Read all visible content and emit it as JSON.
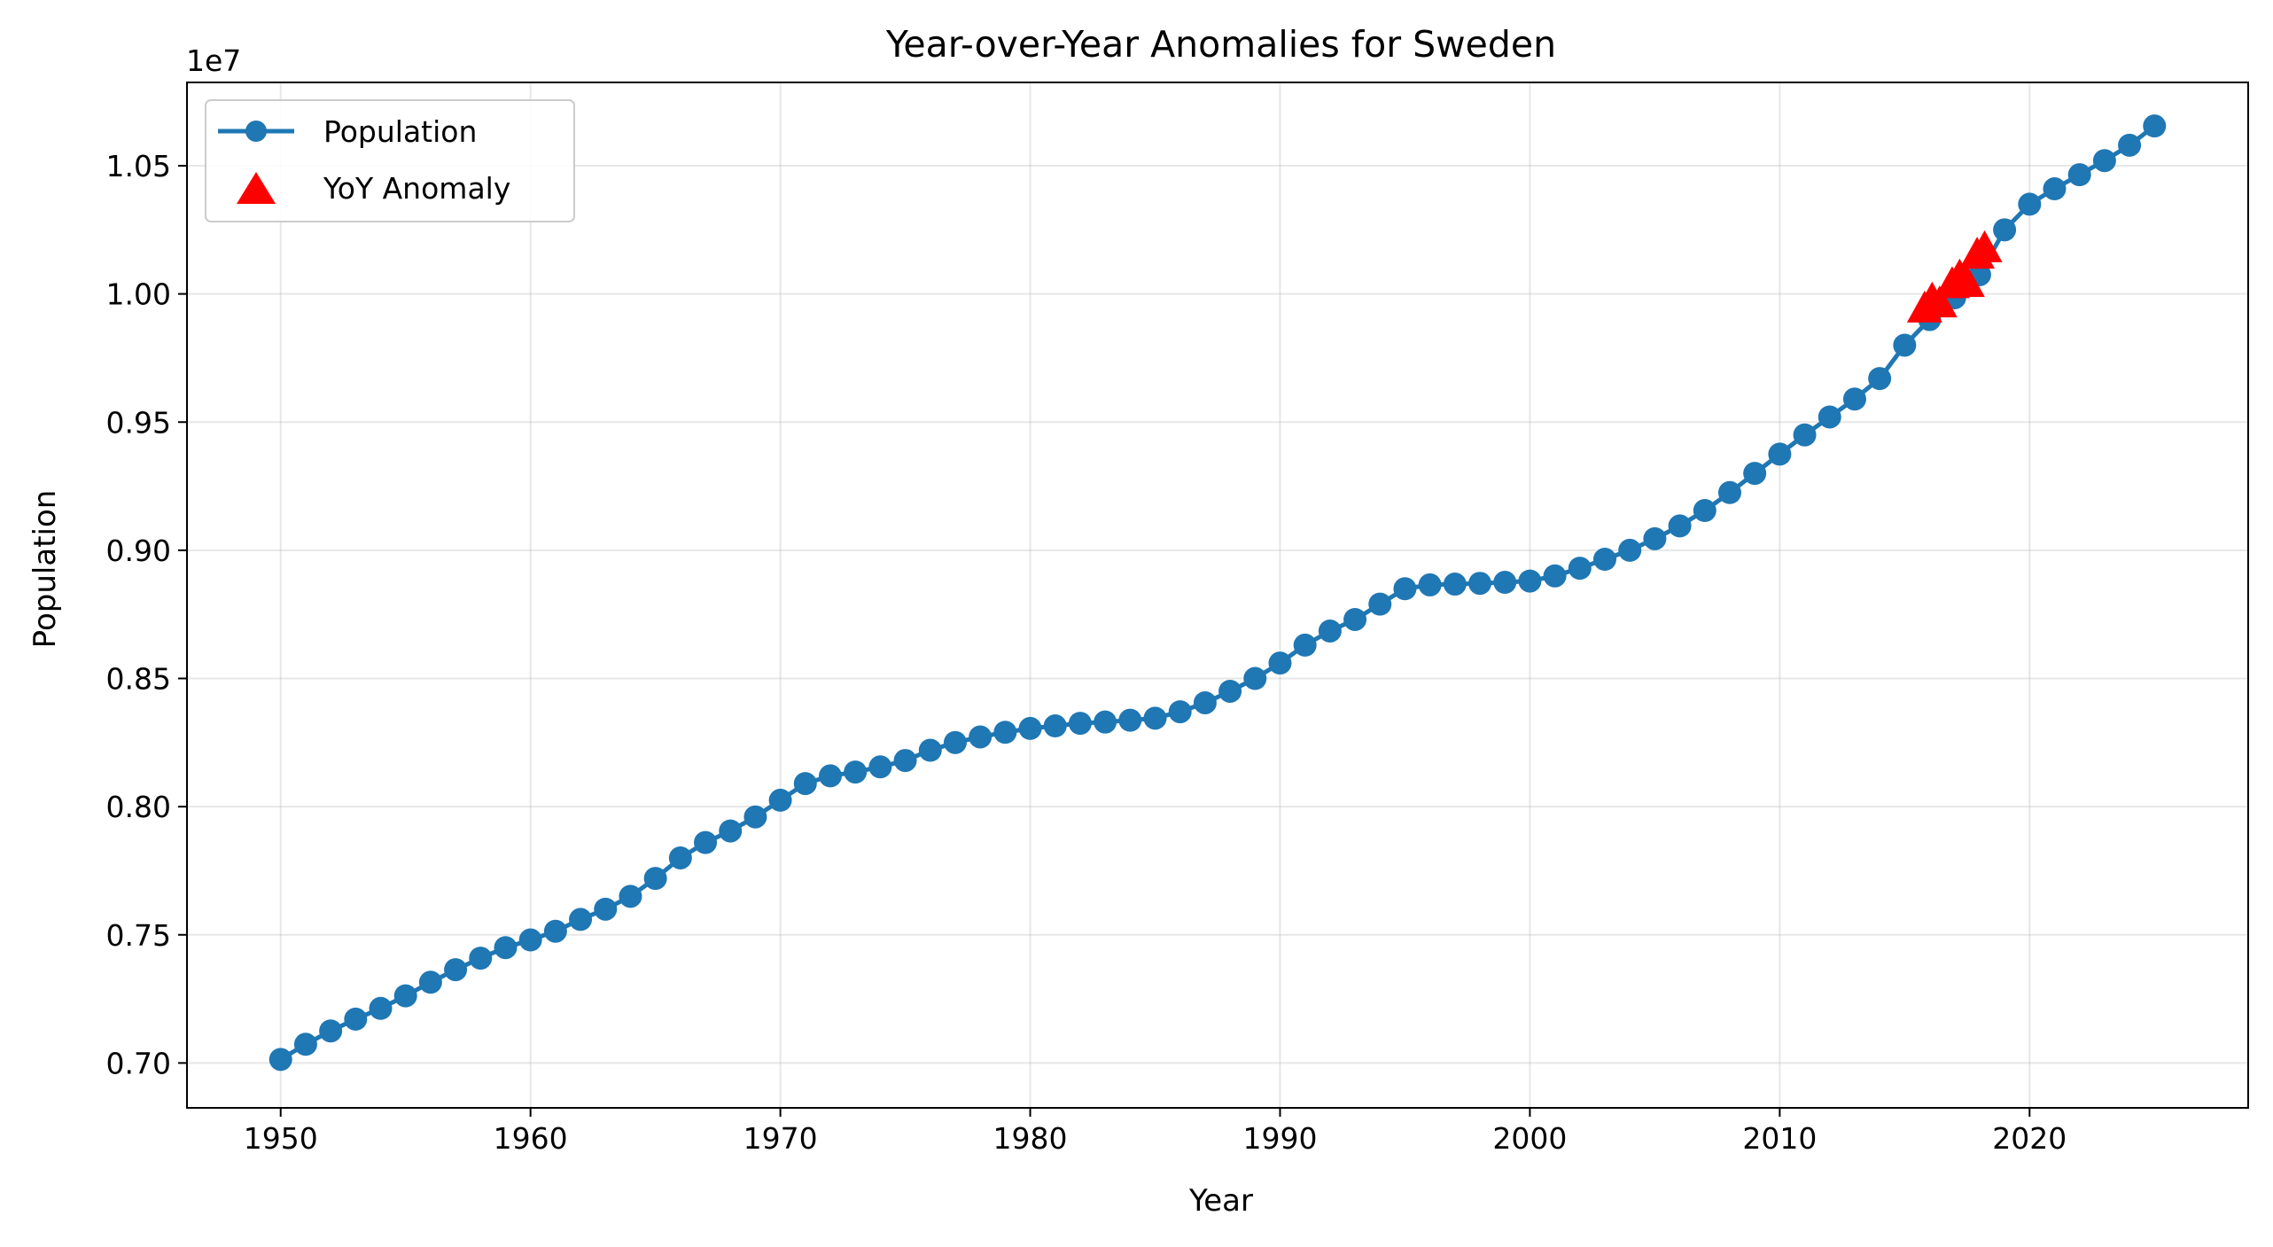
{
  "chart_data": {
    "type": "line",
    "title": "Year-over-Year Anomalies for Sweden",
    "xlabel": "Year",
    "ylabel": "Population",
    "y_offset_label": "1e7",
    "xlim": [
      1946.25,
      2028.75
    ],
    "ylim": [
      0.6825,
      1.0825
    ],
    "x_ticks": [
      1950,
      1960,
      1970,
      1980,
      1990,
      2000,
      2010,
      2020
    ],
    "x_tick_labels": [
      "1950",
      "1960",
      "1970",
      "1980",
      "1990",
      "2000",
      "2010",
      "2020"
    ],
    "y_ticks": [
      0.7,
      0.75,
      0.8,
      0.85,
      0.9,
      0.95,
      1.0,
      1.05
    ],
    "y_tick_labels": [
      "0.70",
      "0.75",
      "0.80",
      "0.85",
      "0.90",
      "0.95",
      "1.00",
      "1.05"
    ],
    "grid": true,
    "legend_position": "upper-left",
    "colors": {
      "population": "#1f77b4",
      "anomaly": "#ff0000"
    },
    "series": [
      {
        "name": "Population",
        "marker": "circle",
        "x": [
          1950,
          1951,
          1952,
          1953,
          1954,
          1955,
          1956,
          1957,
          1958,
          1959,
          1960,
          1961,
          1962,
          1963,
          1964,
          1965,
          1966,
          1967,
          1968,
          1969,
          1970,
          1971,
          1972,
          1973,
          1974,
          1975,
          1976,
          1977,
          1978,
          1979,
          1980,
          1981,
          1982,
          1983,
          1984,
          1985,
          1986,
          1987,
          1988,
          1989,
          1990,
          1991,
          1992,
          1993,
          1994,
          1995,
          1996,
          1997,
          1998,
          1999,
          2000,
          2001,
          2002,
          2003,
          2004,
          2005,
          2006,
          2007,
          2008,
          2009,
          2010,
          2011,
          2012,
          2013,
          2014,
          2015,
          2016,
          2017,
          2018,
          2019,
          2020,
          2021,
          2022,
          2023,
          2024,
          2025
        ],
        "y": [
          0.7014,
          0.7073,
          0.7125,
          0.7171,
          0.7213,
          0.7262,
          0.7315,
          0.7364,
          0.7409,
          0.745,
          0.748,
          0.7514,
          0.756,
          0.76,
          0.765,
          0.772,
          0.78,
          0.786,
          0.7905,
          0.796,
          0.8025,
          0.809,
          0.812,
          0.8135,
          0.8155,
          0.818,
          0.822,
          0.825,
          0.8272,
          0.829,
          0.8305,
          0.8315,
          0.8325,
          0.833,
          0.8337,
          0.8345,
          0.837,
          0.8405,
          0.845,
          0.85,
          0.856,
          0.863,
          0.8685,
          0.873,
          0.879,
          0.885,
          0.8865,
          0.8868,
          0.8871,
          0.8875,
          0.888,
          0.89,
          0.893,
          0.8965,
          0.9,
          0.9045,
          0.9095,
          0.9155,
          0.9225,
          0.93,
          0.9375,
          0.945,
          0.952,
          0.959,
          0.967,
          0.98,
          0.99,
          0.9985,
          1.0075,
          1.025,
          1.035,
          1.041,
          1.0465,
          1.052,
          1.058,
          1.0655
        ]
      },
      {
        "name": "YoY Anomaly",
        "marker": "triangle",
        "x": [
          2015.8,
          2016.1,
          2016.4,
          2016.9,
          2017.2,
          2017.5,
          2017.9,
          2018.2
        ],
        "y": [
          0.993,
          0.9965,
          0.995,
          1.0025,
          1.0055,
          1.003,
          1.014,
          1.0165
        ]
      }
    ]
  }
}
